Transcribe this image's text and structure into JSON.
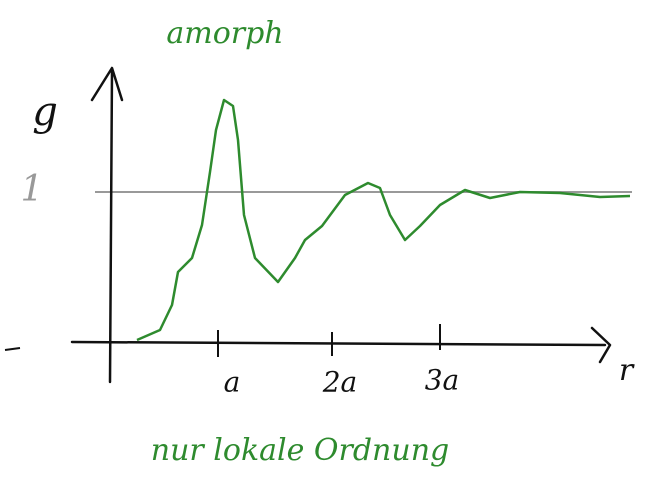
{
  "title": "amorph",
  "axes": {
    "y_label": "g",
    "y_reference": "1",
    "x_label": "r",
    "x_ticks": [
      "a",
      "2a",
      "3a"
    ]
  },
  "caption": "nur lokale Ordnung"
}
